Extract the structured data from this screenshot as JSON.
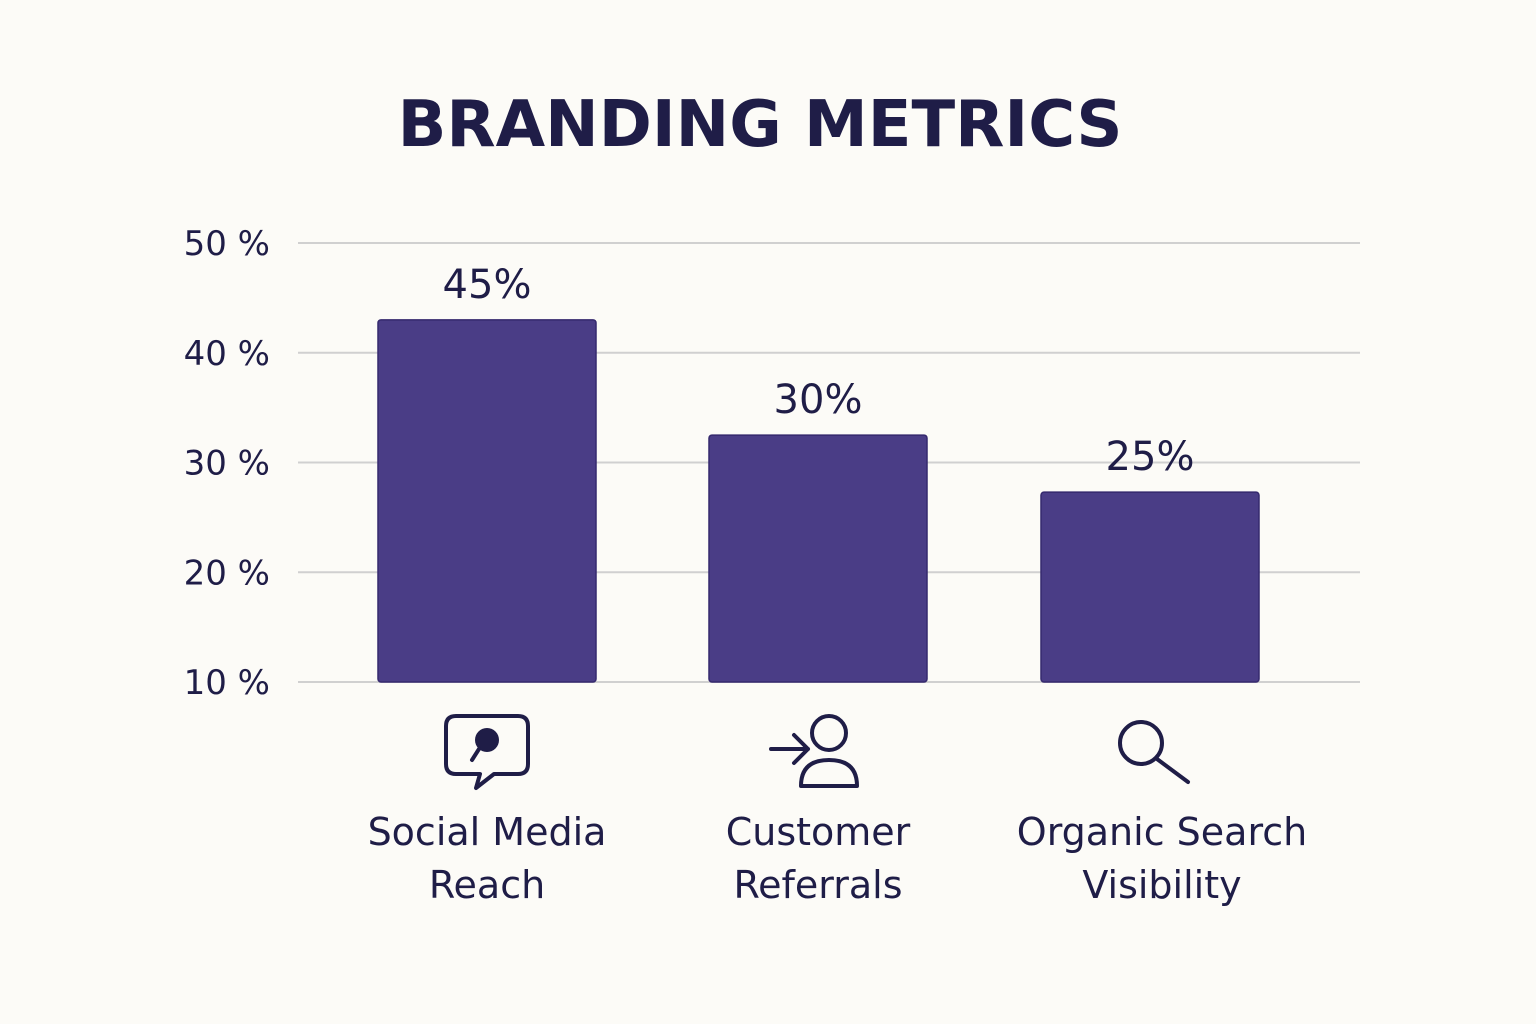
{
  "chart_data": {
    "type": "bar",
    "title": "BRANDING METRICS",
    "categories": [
      {
        "lines": [
          "Social Media",
          "Reach"
        ],
        "icon": "chat-bubble-icon"
      },
      {
        "lines": [
          "Customer",
          "Referrals"
        ],
        "icon": "referral-person-icon"
      },
      {
        "lines": [
          "Organic Search",
          "Visibility"
        ],
        "icon": "search-icon"
      }
    ],
    "values": [
      45,
      30,
      25
    ],
    "data_labels": [
      "45%",
      "30%",
      "25%"
    ],
    "y_ticks": [
      {
        "value": 10,
        "label": "10 %"
      },
      {
        "value": 20,
        "label": "20 %"
      },
      {
        "value": 30,
        "label": "30 %"
      },
      {
        "value": 40,
        "label": "40 %"
      },
      {
        "value": 50,
        "label": "50 %"
      }
    ],
    "ylim": [
      10,
      50
    ],
    "grid": true,
    "xlabel": "",
    "ylabel": "",
    "colors": {
      "bar": "#4a3d86",
      "text": "#1f1d47",
      "grid": "#d0d0d0",
      "background": "#fcfbf7"
    }
  }
}
